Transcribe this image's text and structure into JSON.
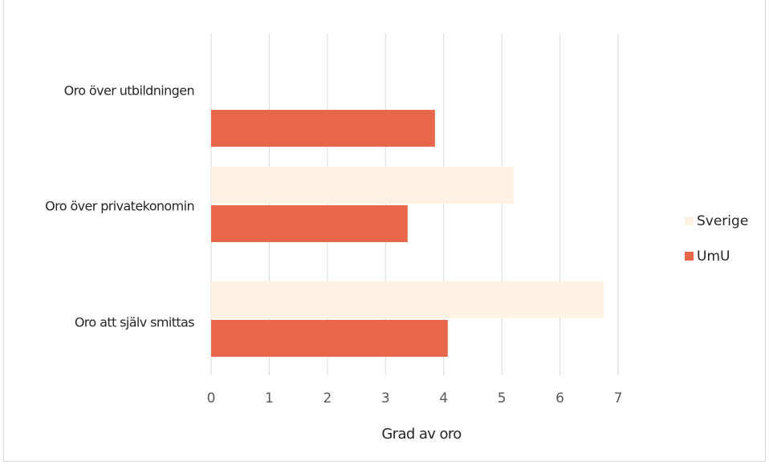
{
  "colors": {
    "background": "#ffffff",
    "gridline": "#d9d9d9",
    "text": "#262626"
  },
  "chart_data": {
    "type": "bar",
    "orientation": "horizontal",
    "title": "",
    "xlabel": "Grad av oro",
    "ylabel": "",
    "xlim": [
      0,
      7
    ],
    "xticks": [
      0,
      1,
      2,
      3,
      4,
      5,
      6,
      7
    ],
    "grid": true,
    "legend_position": "right",
    "categories": [
      "Oro över utbildningen",
      "Oro över privatekonomin",
      "Oro att själv smittas"
    ],
    "series": [
      {
        "name": "Sverige",
        "color": "#fdf2e3",
        "values": [
          null,
          5.2,
          6.75
        ]
      },
      {
        "name": "UmU",
        "color": "#e8664a",
        "values": [
          3.85,
          3.38,
          4.07
        ]
      }
    ]
  }
}
